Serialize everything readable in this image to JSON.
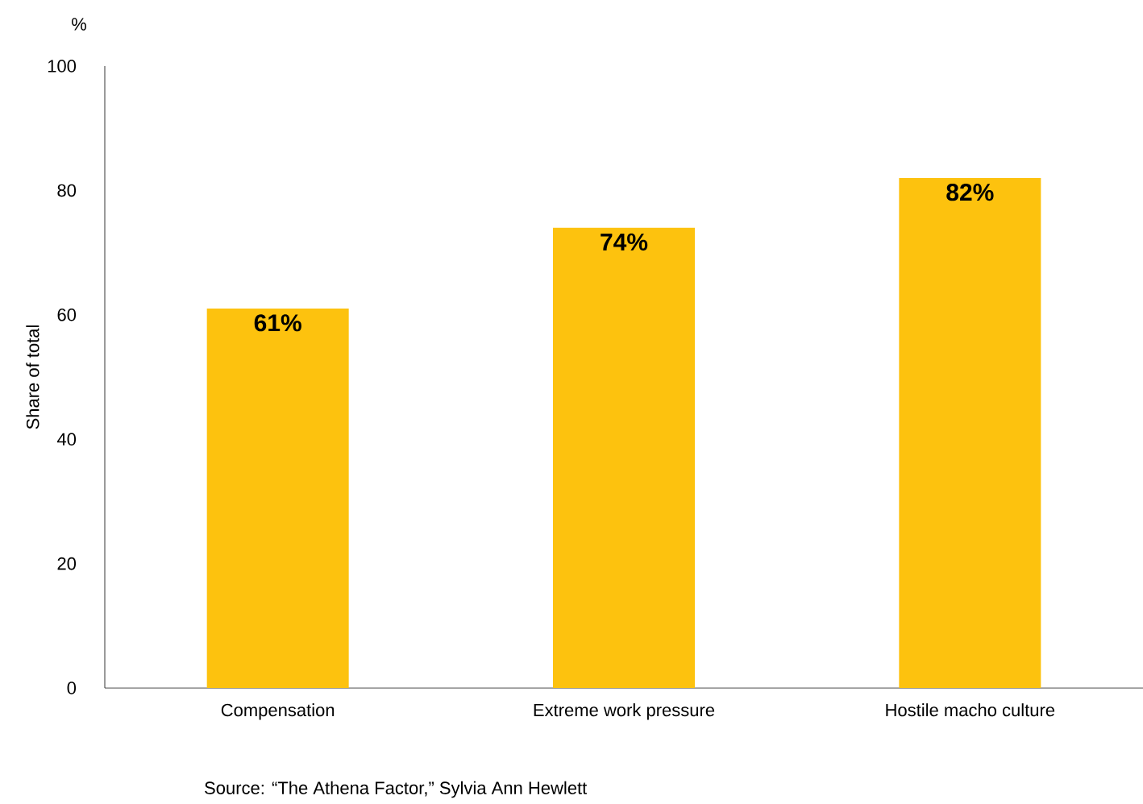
{
  "chart_data": {
    "type": "bar",
    "ylabel": "Share of total",
    "categories": [
      "Compensation",
      "Extreme work pressure",
      "Hostile macho culture"
    ],
    "values": [
      61,
      74,
      82
    ],
    "color": "#fdc20e",
    "value_labels": [
      "61%",
      "74%",
      "82%"
    ],
    "ylim": [
      0,
      100
    ],
    "yticks": [
      0,
      20,
      40,
      60,
      80,
      100
    ],
    "annotations": [
      "%",
      "Source: “The Athena Factor,” Sylvia Ann Hewlett"
    ]
  }
}
